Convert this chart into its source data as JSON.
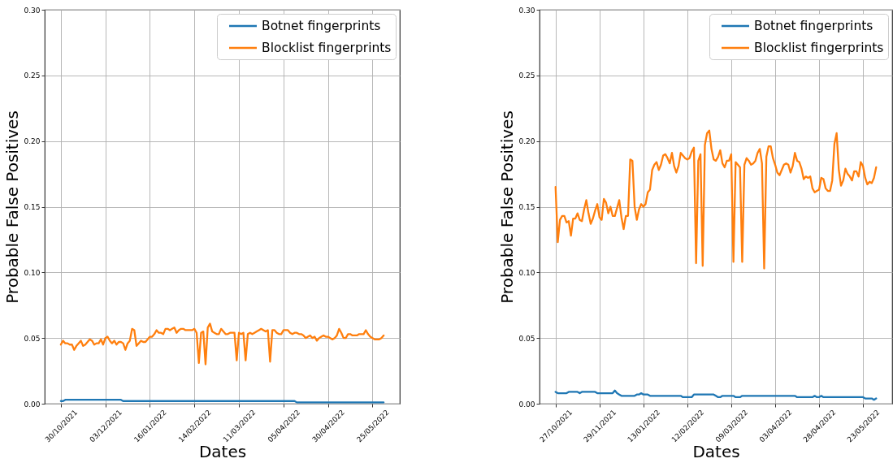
{
  "chart_data": [
    {
      "type": "line",
      "xlabel": "Dates",
      "ylabel": "Probable False Positives",
      "categories": [
        "30/10/2021",
        null,
        null,
        null,
        null,
        null,
        null,
        null,
        null,
        null,
        null,
        null,
        null,
        null,
        null,
        null,
        null,
        null,
        null,
        null,
        "03/12/2021",
        null,
        null,
        null,
        null,
        null,
        null,
        null,
        null,
        null,
        null,
        null,
        null,
        null,
        null,
        null,
        null,
        null,
        null,
        null,
        "16/01/2022",
        null,
        null,
        null,
        null,
        null,
        null,
        null,
        null,
        null,
        null,
        null,
        null,
        null,
        null,
        null,
        null,
        null,
        null,
        null,
        "14/02/2022",
        null,
        null,
        null,
        null,
        null,
        null,
        null,
        null,
        null,
        null,
        null,
        null,
        null,
        null,
        null,
        null,
        null,
        null,
        null,
        "11/03/2022",
        null,
        null,
        null,
        null,
        null,
        null,
        null,
        null,
        null,
        null,
        null,
        null,
        null,
        null,
        null,
        null,
        null,
        null,
        null,
        "05/04/2022",
        null,
        null,
        null,
        null,
        null,
        null,
        null,
        null,
        null,
        null,
        null,
        null,
        null,
        null,
        null,
        null,
        null,
        null,
        null,
        "30/04/2022",
        null,
        null,
        null,
        null,
        null,
        null,
        null,
        null,
        null,
        null,
        null,
        null,
        null,
        null,
        null,
        null,
        null,
        null,
        null,
        "25/05/2022",
        null,
        null,
        null,
        null,
        null
      ],
      "series": [
        {
          "name": "Botnet fingerprints",
          "color": "#1f77b4",
          "values": [
            0.002,
            0.002,
            0.003,
            0.003,
            0.003,
            0.003,
            0.003,
            0.003,
            0.003,
            0.003,
            0.003,
            0.003,
            0.003,
            0.003,
            0.003,
            0.003,
            0.003,
            0.003,
            0.003,
            0.003,
            0.003,
            0.003,
            0.003,
            0.003,
            0.003,
            0.003,
            0.003,
            0.003,
            0.002,
            0.002,
            0.002,
            0.002,
            0.002,
            0.002,
            0.002,
            0.002,
            0.002,
            0.002,
            0.002,
            0.002,
            0.002,
            0.002,
            0.002,
            0.002,
            0.002,
            0.002,
            0.002,
            0.002,
            0.002,
            0.002,
            0.002,
            0.002,
            0.002,
            0.002,
            0.002,
            0.002,
            0.002,
            0.002,
            0.002,
            0.002,
            0.002,
            0.002,
            0.002,
            0.002,
            0.002,
            0.002,
            0.002,
            0.002,
            0.002,
            0.002,
            0.002,
            0.002,
            0.002,
            0.002,
            0.002,
            0.002,
            0.002,
            0.002,
            0.002,
            0.002,
            0.002,
            0.002,
            0.002,
            0.002,
            0.002,
            0.002,
            0.002,
            0.002,
            0.002,
            0.002,
            0.002,
            0.002,
            0.002,
            0.002,
            0.002,
            0.002,
            0.002,
            0.002,
            0.002,
            0.002,
            0.002,
            0.002,
            0.002,
            0.002,
            0.002,
            0.002,
            0.001,
            0.001,
            0.001,
            0.001,
            0.001,
            0.001,
            0.001,
            0.001,
            0.001,
            0.001,
            0.001,
            0.001,
            0.001,
            0.001,
            0.001,
            0.001,
            0.001,
            0.001,
            0.001,
            0.001,
            0.001,
            0.001,
            0.001,
            0.001,
            0.001,
            0.001,
            0.001,
            0.001,
            0.001,
            0.001,
            0.001,
            0.001,
            0.001,
            0.001,
            0.001,
            0.001,
            0.001,
            0.001,
            0.001,
            0.001
          ]
        },
        {
          "name": "Blocklist fingerprints",
          "color": "#ff7f0e",
          "values": [
            0.045,
            0.048,
            0.046,
            0.046,
            0.045,
            0.045,
            0.041,
            0.044,
            0.046,
            0.048,
            0.044,
            0.045,
            0.047,
            0.049,
            0.048,
            0.045,
            0.046,
            0.046,
            0.049,
            0.045,
            0.05,
            0.051,
            0.048,
            0.046,
            0.048,
            0.045,
            0.047,
            0.047,
            0.046,
            0.041,
            0.046,
            0.048,
            0.057,
            0.056,
            0.044,
            0.046,
            0.048,
            0.047,
            0.047,
            0.049,
            0.051,
            0.051,
            0.053,
            0.056,
            0.054,
            0.054,
            0.053,
            0.057,
            0.057,
            0.056,
            0.057,
            0.058,
            0.054,
            0.056,
            0.057,
            0.057,
            0.056,
            0.056,
            0.056,
            0.056,
            0.057,
            0.054,
            0.031,
            0.054,
            0.055,
            0.03,
            0.058,
            0.061,
            0.055,
            0.054,
            0.053,
            0.053,
            0.057,
            0.055,
            0.053,
            0.053,
            0.054,
            0.054,
            0.054,
            0.033,
            0.054,
            0.053,
            0.054,
            0.033,
            0.053,
            0.054,
            0.053,
            0.054,
            0.055,
            0.056,
            0.057,
            0.056,
            0.055,
            0.056,
            0.032,
            0.056,
            0.056,
            0.054,
            0.053,
            0.053,
            0.056,
            0.056,
            0.056,
            0.054,
            0.053,
            0.054,
            0.054,
            0.053,
            0.053,
            0.052,
            0.05,
            0.051,
            0.052,
            0.05,
            0.051,
            0.048,
            0.05,
            0.051,
            0.052,
            0.051,
            0.051,
            0.05,
            0.049,
            0.05,
            0.052,
            0.057,
            0.054,
            0.05,
            0.05,
            0.053,
            0.053,
            0.052,
            0.052,
            0.052,
            0.053,
            0.053,
            0.053,
            0.056,
            0.053,
            0.051,
            0.05,
            0.049,
            0.049,
            0.049,
            0.05,
            0.052
          ]
        }
      ],
      "ylim": [
        0,
        0.3
      ],
      "yticks": [
        {
          "value": 0,
          "label": "0.00"
        },
        0.05,
        {
          "value": 0.1,
          "label": "0.10"
        },
        0.15,
        {
          "value": 0.2,
          "label": "0.20"
        },
        0.25,
        {
          "value": 0.3,
          "label": "0.30"
        }
      ],
      "grid": true,
      "legend": "top right"
    },
    {
      "type": "line",
      "xlabel": "Dates",
      "ylabel": "Probable False Positives",
      "categories": [
        "27/10/2021",
        null,
        null,
        null,
        null,
        null,
        null,
        null,
        null,
        null,
        null,
        null,
        null,
        null,
        null,
        null,
        null,
        null,
        null,
        null,
        "29/11/2021",
        null,
        null,
        null,
        null,
        null,
        null,
        null,
        null,
        null,
        null,
        null,
        null,
        null,
        null,
        null,
        null,
        null,
        null,
        null,
        "13/01/2022",
        null,
        null,
        null,
        null,
        null,
        null,
        null,
        null,
        null,
        null,
        null,
        null,
        null,
        null,
        null,
        null,
        null,
        null,
        null,
        "12/02/2022",
        null,
        null,
        null,
        null,
        null,
        null,
        null,
        null,
        null,
        null,
        null,
        null,
        null,
        null,
        null,
        null,
        null,
        null,
        null,
        "09/03/2022",
        null,
        null,
        null,
        null,
        null,
        null,
        null,
        null,
        null,
        null,
        null,
        null,
        null,
        null,
        null,
        null,
        null,
        null,
        null,
        "03/04/2022",
        null,
        null,
        null,
        null,
        null,
        null,
        null,
        null,
        null,
        null,
        null,
        null,
        null,
        null,
        null,
        null,
        null,
        null,
        null,
        "28/04/2022",
        null,
        null,
        null,
        null,
        null,
        null,
        null,
        null,
        null,
        null,
        null,
        null,
        null,
        null,
        null,
        null,
        null,
        null,
        null,
        "23/05/2022",
        null,
        null,
        null,
        null,
        null,
        null
      ],
      "series": [
        {
          "name": "Botnet fingerprints",
          "color": "#1f77b4",
          "values": [
            0.009,
            0.008,
            0.008,
            0.008,
            0.008,
            0.008,
            0.009,
            0.009,
            0.009,
            0.009,
            0.009,
            0.008,
            0.009,
            0.009,
            0.009,
            0.009,
            0.009,
            0.009,
            0.009,
            0.008,
            0.008,
            0.008,
            0.008,
            0.008,
            0.008,
            0.008,
            0.008,
            0.01,
            0.008,
            0.007,
            0.006,
            0.006,
            0.006,
            0.006,
            0.006,
            0.006,
            0.006,
            0.007,
            0.007,
            0.008,
            0.007,
            0.007,
            0.007,
            0.006,
            0.006,
            0.006,
            0.006,
            0.006,
            0.006,
            0.006,
            0.006,
            0.006,
            0.006,
            0.006,
            0.006,
            0.006,
            0.006,
            0.006,
            0.005,
            0.005,
            0.005,
            0.005,
            0.005,
            0.007,
            0.007,
            0.007,
            0.007,
            0.007,
            0.007,
            0.007,
            0.007,
            0.007,
            0.007,
            0.006,
            0.005,
            0.005,
            0.006,
            0.006,
            0.006,
            0.006,
            0.006,
            0.006,
            0.005,
            0.005,
            0.005,
            0.006,
            0.006,
            0.006,
            0.006,
            0.006,
            0.006,
            0.006,
            0.006,
            0.006,
            0.006,
            0.006,
            0.006,
            0.006,
            0.006,
            0.006,
            0.006,
            0.006,
            0.006,
            0.006,
            0.006,
            0.006,
            0.006,
            0.006,
            0.006,
            0.006,
            0.005,
            0.005,
            0.005,
            0.005,
            0.005,
            0.005,
            0.005,
            0.005,
            0.006,
            0.005,
            0.005,
            0.006,
            0.005,
            0.005,
            0.005,
            0.005,
            0.005,
            0.005,
            0.005,
            0.005,
            0.005,
            0.005,
            0.005,
            0.005,
            0.005,
            0.005,
            0.005,
            0.005,
            0.005,
            0.005,
            0.005,
            0.004,
            0.004,
            0.004,
            0.004,
            0.003,
            0.004
          ]
        },
        {
          "name": "Blocklist fingerprints",
          "color": "#ff7f0e",
          "values": [
            0.165,
            0.123,
            0.14,
            0.143,
            0.143,
            0.138,
            0.139,
            0.128,
            0.141,
            0.141,
            0.145,
            0.14,
            0.139,
            0.148,
            0.155,
            0.145,
            0.137,
            0.141,
            0.147,
            0.152,
            0.142,
            0.14,
            0.156,
            0.153,
            0.145,
            0.15,
            0.143,
            0.143,
            0.149,
            0.155,
            0.142,
            0.133,
            0.143,
            0.143,
            0.186,
            0.185,
            0.15,
            0.14,
            0.148,
            0.152,
            0.15,
            0.152,
            0.161,
            0.163,
            0.178,
            0.182,
            0.184,
            0.178,
            0.182,
            0.189,
            0.19,
            0.187,
            0.183,
            0.191,
            0.181,
            0.176,
            0.181,
            0.191,
            0.189,
            0.187,
            0.186,
            0.187,
            0.192,
            0.195,
            0.107,
            0.185,
            0.19,
            0.105,
            0.197,
            0.206,
            0.208,
            0.194,
            0.186,
            0.185,
            0.188,
            0.193,
            0.183,
            0.18,
            0.185,
            0.185,
            0.19,
            0.108,
            0.184,
            0.182,
            0.18,
            0.108,
            0.182,
            0.187,
            0.185,
            0.182,
            0.183,
            0.185,
            0.191,
            0.194,
            0.183,
            0.103,
            0.188,
            0.196,
            0.196,
            0.187,
            0.182,
            0.176,
            0.174,
            0.178,
            0.182,
            0.183,
            0.182,
            0.176,
            0.181,
            0.191,
            0.185,
            0.184,
            0.179,
            0.171,
            0.173,
            0.172,
            0.173,
            0.164,
            0.161,
            0.162,
            0.163,
            0.172,
            0.171,
            0.164,
            0.162,
            0.162,
            0.17,
            0.198,
            0.206,
            0.178,
            0.166,
            0.17,
            0.179,
            0.175,
            0.173,
            0.17,
            0.177,
            0.177,
            0.173,
            0.184,
            0.181,
            0.172,
            0.167,
            0.169,
            0.168,
            0.172,
            0.18
          ]
        }
      ],
      "ylim": [
        0,
        0.3
      ],
      "yticks": [
        {
          "value": 0,
          "label": "0.00"
        },
        0.05,
        {
          "value": 0.1,
          "label": "0.10"
        },
        0.15,
        {
          "value": 0.2,
          "label": "0.20"
        },
        0.25,
        {
          "value": 0.3,
          "label": "0.30"
        }
      ],
      "grid": true,
      "legend": "top right"
    }
  ]
}
